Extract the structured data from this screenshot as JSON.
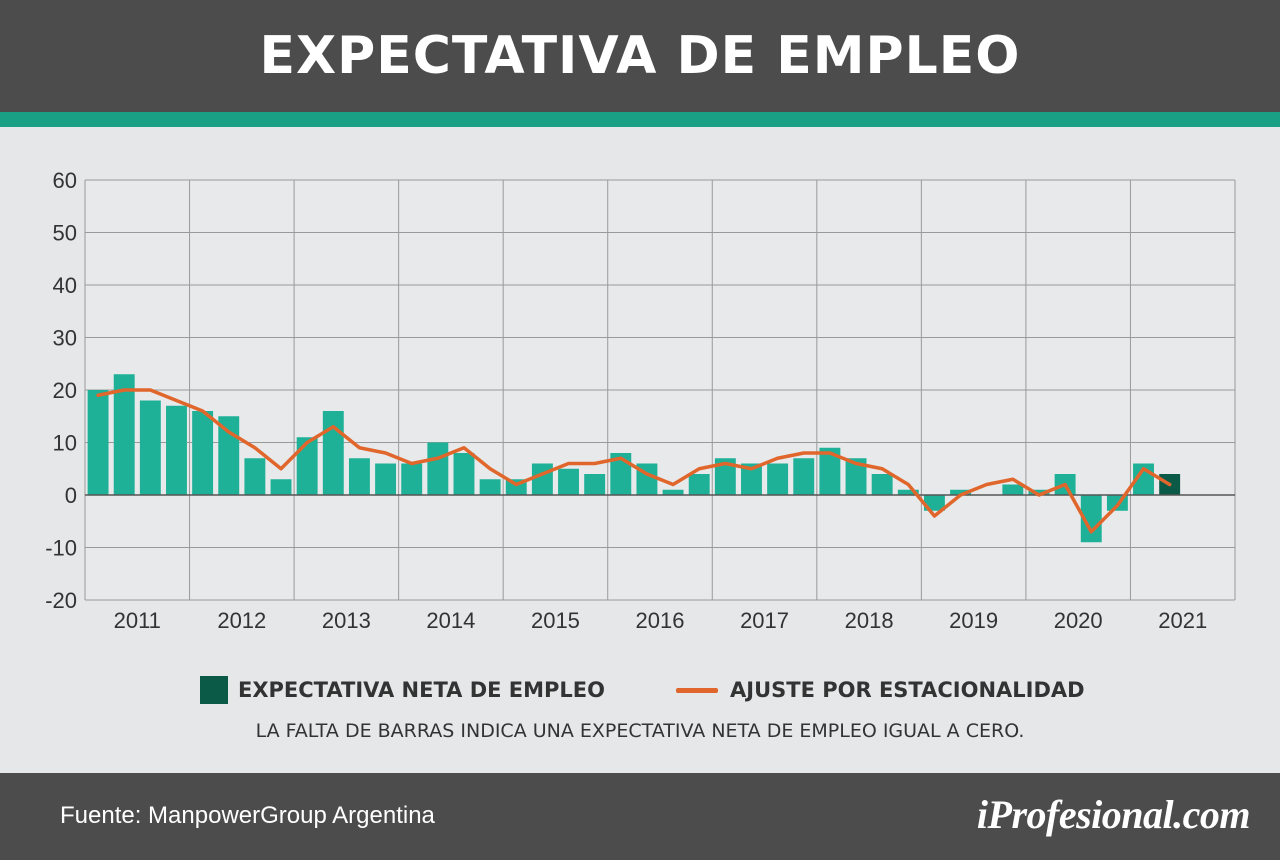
{
  "title": "EXPECTATIVA DE EMPLEO",
  "legend": {
    "bars": "EXPECTATIVA NETA DE EMPLEO",
    "line": "AJUSTE POR ESTACIONALIDAD"
  },
  "note": "LA FALTA DE BARRAS INDICA UNA EXPECTATIVA NETA DE EMPLEO IGUAL A CERO.",
  "footer": {
    "source": "Fuente: ManpowerGroup Argentina",
    "logo": "iProfesional.com"
  },
  "colors": {
    "bar": "#1fb197",
    "bar_highlight": "#0b5a48",
    "line": "#e0662c",
    "header": "#4c4c4c",
    "accent": "#1aa185"
  },
  "chart_data": {
    "type": "bar",
    "ylim": [
      -20,
      60
    ],
    "yticks": [
      60,
      50,
      40,
      30,
      20,
      10,
      0,
      -10,
      -20
    ],
    "year_labels": [
      "2011",
      "2012",
      "2013",
      "2014",
      "2015",
      "2016",
      "2017",
      "2018",
      "2019",
      "2020",
      "2021"
    ],
    "categories": [
      "2011-Q1",
      "2011-Q2",
      "2011-Q3",
      "2011-Q4",
      "2012-Q1",
      "2012-Q2",
      "2012-Q3",
      "2012-Q4",
      "2013-Q1",
      "2013-Q2",
      "2013-Q3",
      "2013-Q4",
      "2014-Q1",
      "2014-Q2",
      "2014-Q3",
      "2014-Q4",
      "2015-Q1",
      "2015-Q2",
      "2015-Q3",
      "2015-Q4",
      "2016-Q1",
      "2016-Q2",
      "2016-Q3",
      "2016-Q4",
      "2017-Q1",
      "2017-Q2",
      "2017-Q3",
      "2017-Q4",
      "2018-Q1",
      "2018-Q2",
      "2018-Q3",
      "2018-Q4",
      "2019-Q1",
      "2019-Q2",
      "2019-Q3",
      "2019-Q4",
      "2020-Q1",
      "2020-Q2",
      "2020-Q3",
      "2020-Q4",
      "2021-Q1",
      "2021-Q2",
      "2021-Q3"
    ],
    "series": [
      {
        "name": "EXPECTATIVA NETA DE EMPLEO",
        "type": "bar",
        "values": [
          20,
          23,
          18,
          17,
          16,
          15,
          7,
          3,
          11,
          16,
          7,
          6,
          6,
          10,
          8,
          3,
          3,
          6,
          5,
          4,
          8,
          6,
          1,
          4,
          7,
          6,
          6,
          7,
          9,
          7,
          4,
          1,
          -3,
          1,
          0,
          2,
          1,
          4,
          -9,
          -3,
          6,
          4,
          null
        ],
        "highlight_last": true
      },
      {
        "name": "AJUSTE POR ESTACIONALIDAD",
        "type": "line",
        "values": [
          19,
          20,
          20,
          18,
          16,
          12,
          9,
          5,
          10,
          13,
          9,
          8,
          6,
          7,
          9,
          5,
          2,
          4,
          6,
          6,
          7,
          4,
          2,
          5,
          6,
          5,
          7,
          8,
          8,
          6,
          5,
          2,
          -4,
          0,
          2,
          3,
          0,
          2,
          -7,
          -2,
          5,
          2,
          null
        ]
      }
    ]
  }
}
